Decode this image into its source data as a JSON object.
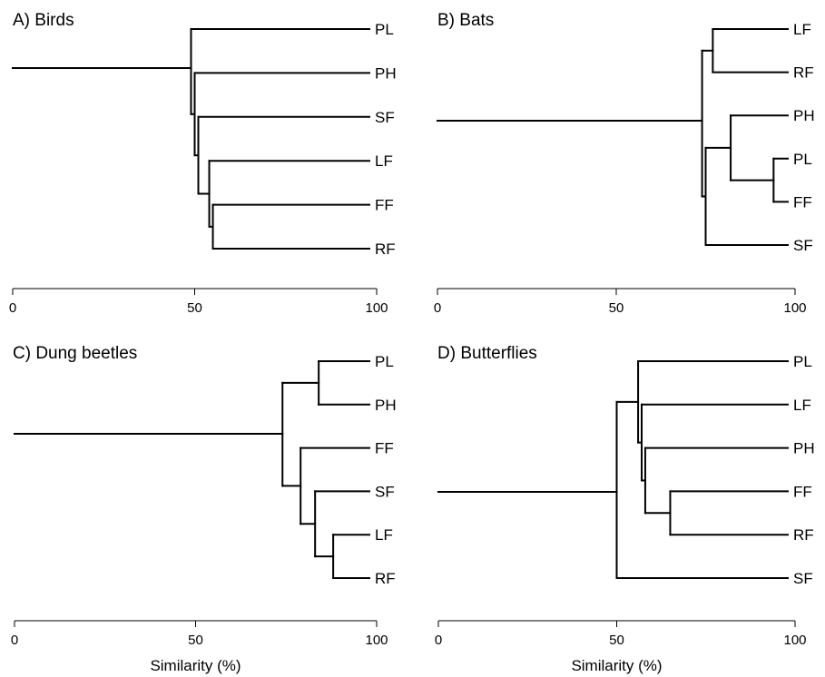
{
  "chart_data": [
    {
      "type": "dendrogram",
      "title": "A) Birds",
      "xlabel": "",
      "xlim": [
        0,
        100
      ],
      "ticks": [
        "0",
        "50",
        "100"
      ],
      "tick_values": [
        0,
        50,
        100
      ],
      "leaves": [
        "PL",
        "PH",
        "SF",
        "LF",
        "FF",
        "RF"
      ],
      "merges": [
        {
          "a": "FF",
          "b": "RF",
          "similarity": 55
        },
        {
          "a": "LF",
          "b": "FF+RF",
          "similarity": 54
        },
        {
          "a": "SF",
          "b": "LF+FF+RF",
          "similarity": 51
        },
        {
          "a": "PH",
          "b": "SF+LF+FF+RF",
          "similarity": 50
        },
        {
          "a": "PL",
          "b": "PH+SF+LF+FF+RF",
          "similarity": 49
        }
      ]
    },
    {
      "type": "dendrogram",
      "title": "B) Bats",
      "xlabel": "",
      "xlim": [
        0,
        100
      ],
      "ticks": [
        "0",
        "50",
        "100"
      ],
      "tick_values": [
        0,
        50,
        100
      ],
      "leaves": [
        "LF",
        "RF",
        "PH",
        "PL",
        "FF",
        "SF"
      ],
      "merges": [
        {
          "a": "PL",
          "b": "FF",
          "similarity": 94
        },
        {
          "a": "PH",
          "b": "PL+FF",
          "similarity": 82
        },
        {
          "a": "LF",
          "b": "RF",
          "similarity": 77
        },
        {
          "a": "PH+PL+FF",
          "b": "SF",
          "similarity": 75
        },
        {
          "a": "LF+RF",
          "b": "PH+PL+FF+SF",
          "similarity": 74
        }
      ]
    },
    {
      "type": "dendrogram",
      "title": "C) Dung beetles",
      "xlabel": "Similarity (%)",
      "xlim": [
        0,
        100
      ],
      "ticks": [
        "0",
        "50",
        "100"
      ],
      "tick_values": [
        0,
        50,
        100
      ],
      "leaves": [
        "PL",
        "PH",
        "FF",
        "SF",
        "LF",
        "RF"
      ],
      "merges": [
        {
          "a": "LF",
          "b": "RF",
          "similarity": 88
        },
        {
          "a": "PL",
          "b": "PH",
          "similarity": 84
        },
        {
          "a": "SF",
          "b": "LF+RF",
          "similarity": 83
        },
        {
          "a": "FF",
          "b": "SF+LF+RF",
          "similarity": 79
        },
        {
          "a": "PL+PH",
          "b": "FF+SF+LF+RF",
          "similarity": 74
        }
      ]
    },
    {
      "type": "dendrogram",
      "title": "D) Butterflies",
      "xlabel": "Similarity (%)",
      "xlim": [
        0,
        100
      ],
      "ticks": [
        "0",
        "50",
        "100"
      ],
      "tick_values": [
        0,
        50,
        100
      ],
      "leaves": [
        "PL",
        "LF",
        "PH",
        "FF",
        "RF",
        "SF"
      ],
      "merges": [
        {
          "a": "FF",
          "b": "RF",
          "similarity": 65
        },
        {
          "a": "PH",
          "b": "FF+RF",
          "similarity": 58
        },
        {
          "a": "LF",
          "b": "PH+FF+RF",
          "similarity": 57
        },
        {
          "a": "PL",
          "b": "LF+PH+FF+RF",
          "similarity": 56
        },
        {
          "a": "PL+LF+PH+FF+RF",
          "b": "SF",
          "similarity": 50
        }
      ]
    }
  ]
}
